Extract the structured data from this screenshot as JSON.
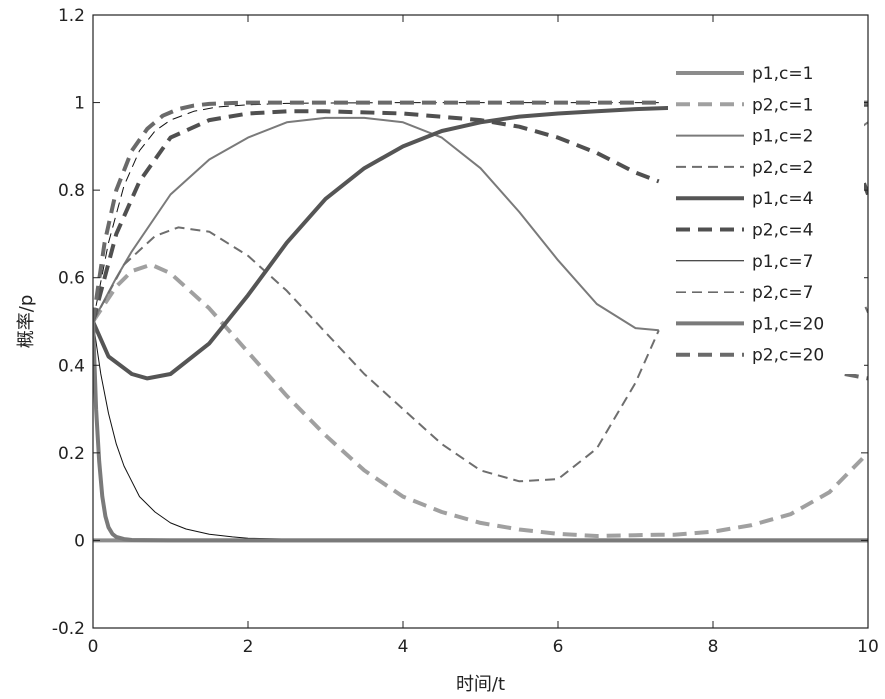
{
  "chart_data": {
    "type": "line",
    "title": "",
    "xlabel": "时间/t",
    "ylabel": "概率/p",
    "xlim": [
      0,
      10
    ],
    "ylim": [
      -0.2,
      1.2
    ],
    "xticks": [
      0,
      2,
      4,
      6,
      8,
      10
    ],
    "yticks": [
      -0.2,
      0,
      0.2,
      0.4,
      0.6,
      0.8,
      1,
      1.2
    ],
    "xtick_labels": [
      "0",
      "2",
      "4",
      "6",
      "8",
      "10"
    ],
    "ytick_labels": [
      "-0.2",
      "0",
      "0.2",
      "0.4",
      "0.6",
      "0.8",
      "1",
      "1.2"
    ],
    "grid": false,
    "legend_position": "top-right",
    "series": [
      {
        "name": "p1,c=1",
        "color": "#8c8c8c",
        "dash": "solid",
        "width": 4,
        "x": [
          0,
          1,
          2,
          3,
          4,
          5,
          6,
          7,
          8,
          9,
          10
        ],
        "y": [
          0,
          0,
          0,
          0,
          0,
          0,
          0,
          0,
          0,
          0,
          0
        ]
      },
      {
        "name": "p2,c=1",
        "color": "#a0a0a0",
        "dash": "dashed",
        "width": 4,
        "x": [
          0,
          0.3,
          0.5,
          0.75,
          1.0,
          1.5,
          2.0,
          2.5,
          3.0,
          3.5,
          4.0,
          4.5,
          5.0,
          5.5,
          6.0,
          6.5,
          7.0,
          7.3,
          7.5,
          8.0,
          8.5,
          9.0,
          9.5,
          10
        ],
        "y": [
          0.5,
          0.58,
          0.615,
          0.63,
          0.61,
          0.53,
          0.43,
          0.33,
          0.24,
          0.16,
          0.1,
          0.065,
          0.04,
          0.025,
          0.015,
          0.01,
          0.012,
          0.013,
          0.013,
          0.02,
          0.035,
          0.06,
          0.11,
          0.2
        ]
      },
      {
        "name": "p1,c=2",
        "color": "#7a7a7a",
        "dash": "solid",
        "width": 2,
        "x": [
          0,
          0.3,
          0.5,
          1.0,
          1.5,
          2.0,
          2.5,
          3.0,
          3.5,
          4.0,
          4.5,
          5.0,
          5.5,
          6.0,
          6.5,
          7.0,
          7.3
        ],
        "y": [
          0.5,
          0.6,
          0.66,
          0.79,
          0.87,
          0.92,
          0.955,
          0.965,
          0.965,
          0.955,
          0.92,
          0.85,
          0.75,
          0.64,
          0.54,
          0.485,
          0.48
        ]
      },
      {
        "name": "p2,c=2",
        "color": "#6e6e6e",
        "dash": "dashed",
        "width": 2,
        "x": [
          0,
          0.4,
          0.8,
          1.1,
          1.5,
          2.0,
          2.5,
          3.0,
          3.5,
          4.0,
          4.5,
          5.0,
          5.5,
          6.0,
          6.5,
          7.0,
          7.3
        ],
        "y": [
          0.5,
          0.63,
          0.695,
          0.715,
          0.705,
          0.65,
          0.57,
          0.475,
          0.38,
          0.3,
          0.22,
          0.16,
          0.135,
          0.14,
          0.21,
          0.36,
          0.48
        ]
      },
      {
        "name": "p1,c=4",
        "color": "#555555",
        "dash": "solid",
        "width": 4,
        "x": [
          0,
          0.2,
          0.5,
          0.7,
          1.0,
          1.5,
          2.0,
          2.5,
          3.0,
          3.5,
          4.0,
          4.5,
          5.0,
          5.5,
          6.0,
          6.5,
          7.0,
          7.5,
          8.0,
          8.5,
          9.0,
          9.5,
          10
        ],
        "y": [
          0.5,
          0.42,
          0.38,
          0.37,
          0.38,
          0.45,
          0.56,
          0.68,
          0.78,
          0.85,
          0.9,
          0.935,
          0.955,
          0.968,
          0.975,
          0.98,
          0.985,
          0.988,
          0.99,
          0.992,
          0.995,
          0.995,
          0.995
        ]
      },
      {
        "name": "p2,c=4",
        "color": "#505050",
        "dash": "dashed",
        "width": 4,
        "x": [
          0,
          0.3,
          0.6,
          1.0,
          1.5,
          2.0,
          2.5,
          3.0,
          4.0,
          5.0,
          5.5,
          6.0,
          6.5,
          7.0,
          7.3
        ],
        "y": [
          0.5,
          0.7,
          0.82,
          0.92,
          0.96,
          0.975,
          0.98,
          0.98,
          0.975,
          0.96,
          0.945,
          0.92,
          0.885,
          0.84,
          0.82
        ]
      },
      {
        "name": "p1,c=7",
        "color": "#111111",
        "dash": "solid",
        "width": 1,
        "x": [
          0,
          0.1,
          0.2,
          0.3,
          0.4,
          0.6,
          0.8,
          1.0,
          1.2,
          1.5,
          1.8,
          2.0,
          3.0,
          10
        ],
        "y": [
          0.5,
          0.38,
          0.29,
          0.22,
          0.17,
          0.1,
          0.065,
          0.04,
          0.026,
          0.014,
          0.008,
          0.005,
          0.001,
          0
        ]
      },
      {
        "name": "p2,c=7",
        "color": "#111111",
        "dash": "dashed",
        "width": 1,
        "x": [
          0,
          0.2,
          0.4,
          0.6,
          0.8,
          1.0,
          1.3,
          1.6,
          2.0,
          2.5,
          3.0,
          4.0,
          5.0,
          6.0,
          7.0,
          7.3
        ],
        "y": [
          0.5,
          0.68,
          0.81,
          0.89,
          0.935,
          0.96,
          0.98,
          0.99,
          0.995,
          0.998,
          0.999,
          1,
          1,
          1,
          1,
          1
        ]
      },
      {
        "name": "p1,c=20",
        "color": "#7a7a7a",
        "dash": "solid",
        "width": 4,
        "x": [
          0,
          0.04,
          0.08,
          0.12,
          0.16,
          0.2,
          0.25,
          0.3,
          0.4,
          0.5,
          1.0,
          2.0,
          10
        ],
        "y": [
          0.5,
          0.3,
          0.18,
          0.1,
          0.055,
          0.03,
          0.015,
          0.008,
          0.003,
          0.001,
          0,
          0,
          0
        ]
      },
      {
        "name": "p2,c=20",
        "color": "#6a6a6a",
        "dash": "dashed",
        "width": 4,
        "x": [
          0,
          0.15,
          0.3,
          0.5,
          0.7,
          0.9,
          1.1,
          1.3,
          1.5,
          1.8,
          2.0,
          3.0,
          5.0,
          7.0,
          7.3
        ],
        "y": [
          0.5,
          0.68,
          0.8,
          0.89,
          0.94,
          0.97,
          0.985,
          0.993,
          0.997,
          0.999,
          1,
          1,
          1,
          1,
          1
        ]
      }
    ],
    "right_edge_fragments": [
      {
        "series_index": 2,
        "x": [
          9.6,
          9.8,
          10
        ],
        "y": [
          0.9,
          0.93,
          0.955
        ]
      },
      {
        "series_index": 3,
        "x": [
          9.8,
          9.9,
          10
        ],
        "y": [
          0.6,
          0.56,
          0.52
        ]
      },
      {
        "series_index": 5,
        "x": [
          9.75,
          9.88,
          10
        ],
        "y": [
          0.91,
          0.85,
          0.79
        ]
      },
      {
        "series_index": 8,
        "x": [
          9.8,
          9.9,
          10
        ],
        "y": [
          1,
          1,
          1
        ]
      },
      {
        "series_index": 9,
        "x": [
          9.7,
          9.85,
          10
        ],
        "y": [
          0.38,
          0.375,
          0.37
        ]
      }
    ]
  }
}
